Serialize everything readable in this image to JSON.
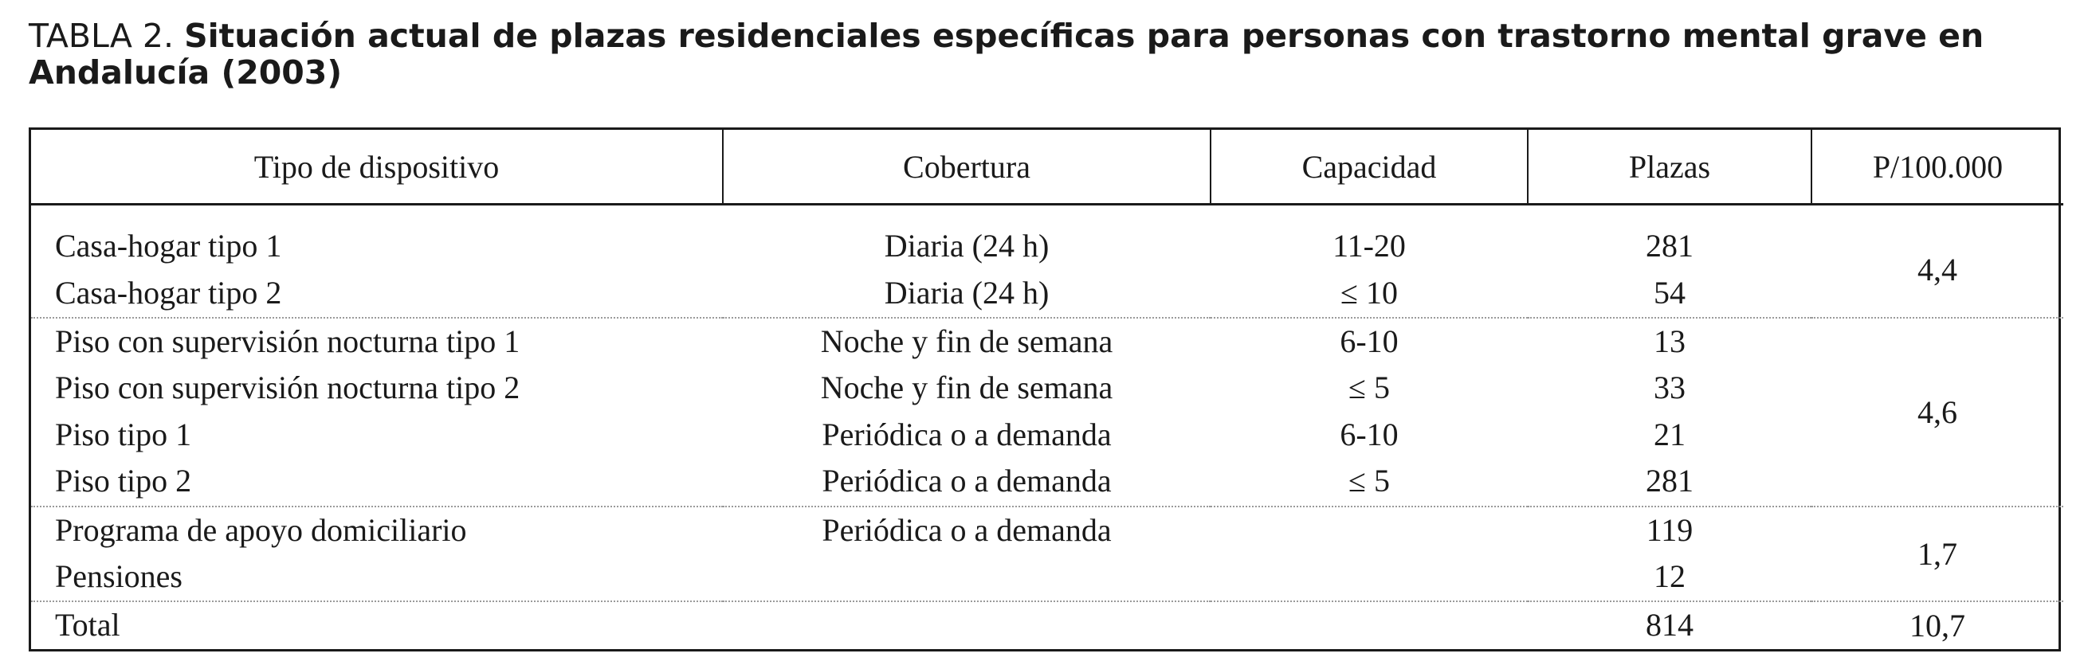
{
  "caption": {
    "label": "TABLA 2.",
    "title": "Situación actual de plazas residenciales específicas para personas con trastorno mental grave en Andalucía (2003)"
  },
  "table": {
    "headers": [
      "Tipo de dispositivo",
      "Cobertura",
      "Capacidad",
      "Plazas",
      "P/100.000"
    ],
    "groups": [
      {
        "rows": [
          {
            "tipo": "Casa-hogar tipo 1",
            "cobertura": "Diaria (24 h)",
            "capacidad": "11-20",
            "plazas": "281"
          },
          {
            "tipo": "Casa-hogar tipo 2",
            "cobertura": "Diaria (24 h)",
            "capacidad": "≤ 10",
            "plazas": "54"
          }
        ],
        "p100": "4,4"
      },
      {
        "rows": [
          {
            "tipo": "Piso con supervisión nocturna tipo 1",
            "cobertura": "Noche y fin de semana",
            "capacidad": "6-10",
            "plazas": "13"
          },
          {
            "tipo": "Piso con supervisión nocturna tipo 2",
            "cobertura": "Noche y fin de semana",
            "capacidad": "≤ 5",
            "plazas": "33"
          },
          {
            "tipo": "Piso tipo 1",
            "cobertura": "Periódica o a demanda",
            "capacidad": "6-10",
            "plazas": "21"
          },
          {
            "tipo": "Piso tipo 2",
            "cobertura": "Periódica o a demanda",
            "capacidad": "≤ 5",
            "plazas": "281"
          }
        ],
        "p100": "4,6"
      },
      {
        "rows": [
          {
            "tipo": "Programa de apoyo domiciliario",
            "cobertura": "Periódica o a demanda",
            "capacidad": "",
            "plazas": "119"
          },
          {
            "tipo": "Pensiones",
            "cobertura": "",
            "capacidad": "",
            "plazas": "12"
          }
        ],
        "p100": "1,7"
      },
      {
        "rows": [
          {
            "tipo": "Total",
            "cobertura": "",
            "capacidad": "",
            "plazas": "814"
          }
        ],
        "p100": "10,7"
      }
    ]
  }
}
